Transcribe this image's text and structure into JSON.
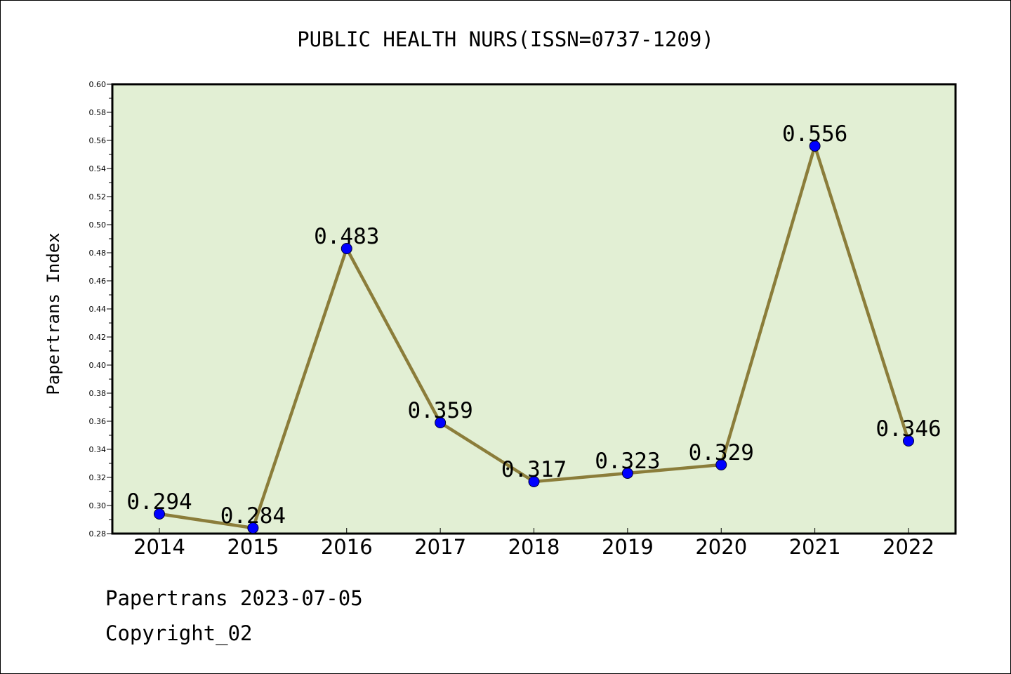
{
  "chart_data": {
    "type": "line",
    "title": "PUBLIC HEALTH NURS(ISSN=0737-1209)",
    "xlabel": "",
    "ylabel": "Papertrans Index",
    "categories": [
      "2014",
      "2015",
      "2016",
      "2017",
      "2018",
      "2019",
      "2020",
      "2021",
      "2022"
    ],
    "series": [
      {
        "values": [
          0.294,
          0.284,
          0.483,
          0.359,
          0.317,
          0.323,
          0.329,
          0.556,
          0.346
        ],
        "data_labels": [
          "0.294",
          "0.284",
          "0.483",
          "0.359",
          "0.317",
          "0.323",
          "0.329",
          "0.556",
          "0.346"
        ]
      }
    ],
    "ylim": [
      0.28,
      0.6
    ],
    "yticks": [
      "0.28",
      "0.30",
      "0.32",
      "0.34",
      "0.36",
      "0.38",
      "0.40",
      "0.42",
      "0.44",
      "0.46",
      "0.48",
      "0.50",
      "0.52",
      "0.54",
      "0.56",
      "0.58",
      "0.60"
    ],
    "grid": false,
    "legend": "none",
    "colors": {
      "plot_background": "#e2efd4",
      "line": "#8b7d3a",
      "marker": "#0000ff",
      "axis": "#000000"
    }
  },
  "footer": {
    "line1": "Papertrans 2023-07-05",
    "line2": "Copyright_02"
  }
}
